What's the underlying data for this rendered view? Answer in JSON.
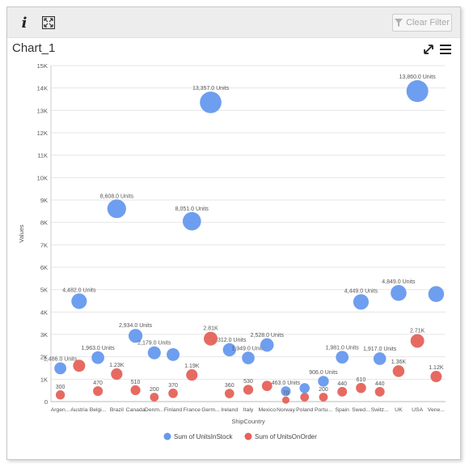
{
  "toolbar": {
    "info_icon": "info-icon",
    "expand_icon": "expand-icon",
    "clear_filter_label": "Clear Filter",
    "clear_filter_icon": "filter-icon"
  },
  "header": {
    "title": "Chart_1",
    "maximize_icon": "maximize-icon",
    "menu_icon": "hamburger-menu-icon"
  },
  "colors": {
    "stock": "#6699ee",
    "order": "#e5625a",
    "grid": "#e6e6e6",
    "axis_text": "#555555"
  },
  "chart_data": {
    "type": "scatter",
    "xlabel": "ShipCountry",
    "ylabel": "Values",
    "ylim": [
      0,
      15000
    ],
    "yticks": [
      0,
      1000,
      2000,
      3000,
      4000,
      5000,
      6000,
      7000,
      8000,
      9000,
      10000,
      11000,
      12000,
      13000,
      14000,
      15000
    ],
    "ytick_labels": [
      "0",
      "1K",
      "2K",
      "3K",
      "4K",
      "5K",
      "6K",
      "7K",
      "8K",
      "9K",
      "10K",
      "11K",
      "12K",
      "13K",
      "14K",
      "15K"
    ],
    "grid": true,
    "legend_position": "bottom",
    "categories": [
      "Argen...",
      "Austria",
      "Belgi...",
      "Brazil",
      "Canada",
      "Denm...",
      "Finland",
      "France",
      "Germ...",
      "Ireland",
      "Italy",
      "Mexico",
      "Norway",
      "Poland",
      "Portu...",
      "Spain",
      "Swed...",
      "Switz...",
      "UK",
      "USA",
      "Vene..."
    ],
    "series": [
      {
        "name": "Sum of UnitsInStock",
        "values": [
          1486,
          4482,
          1963,
          8608,
          2934,
          2179,
          2100,
          8051,
          13357,
          2312,
          1949,
          2528,
          463,
          600,
          906,
          1981,
          4449,
          1917,
          4849,
          13860,
          4800
        ],
        "labels": [
          "1,486.0 Units",
          "4,482.0 Units",
          "1,963.0 Units",
          "8,608.0 Units",
          "2,934.0 Units",
          "2,179.0 Units",
          "",
          "8,051.0 Units",
          "13,357.0 Units",
          "2,312.0 Units",
          "1,949.0 Units",
          "2,528.0 Units",
          "463.0 Units",
          "",
          "906.0 Units",
          "1,981.0 Units",
          "4,449.0 Units",
          "1,917.0 Units",
          "4,849.0 Units",
          "13,860.0 Units",
          ""
        ]
      },
      {
        "name": "Sum of UnitsOnOrder",
        "values": [
          300,
          1600,
          470,
          1230,
          510,
          200,
          370,
          1190,
          2810,
          360,
          530,
          700,
          70,
          200,
          200,
          440,
          610,
          440,
          1360,
          2710,
          1120
        ],
        "labels": [
          "300",
          "",
          "470",
          "1.23K",
          "510",
          "200",
          "370",
          "1.19K",
          "2.81K",
          "360",
          "530",
          "",
          "70",
          "",
          "200",
          "440",
          "610",
          "440",
          "1.36K",
          "2.71K",
          "1.12K"
        ]
      }
    ]
  }
}
